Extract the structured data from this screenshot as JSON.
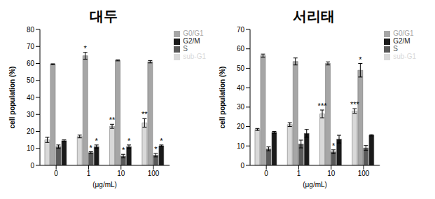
{
  "chart_data": [
    {
      "type": "bar",
      "title": "대두",
      "x_label": "(μg/mL)",
      "y_label": "cell population (%)",
      "categories": [
        "0",
        "1",
        "10",
        "100"
      ],
      "ylim": [
        0,
        80
      ],
      "yticks": [
        0,
        10,
        20,
        30,
        40,
        50,
        60,
        70,
        80
      ],
      "legend": "upper right",
      "series": [
        {
          "name": "sub-G1",
          "color": "#d9d9d9",
          "values": [
            15,
            17,
            23,
            25
          ],
          "errors": [
            1.5,
            0.8,
            1.2,
            2.5
          ],
          "significance": [
            null,
            null,
            "**",
            "**"
          ]
        },
        {
          "name": "G0/G1",
          "color": "#a6a6a6",
          "values": [
            59.5,
            64.5,
            61.8,
            61
          ],
          "errors": [
            0.3,
            2,
            0.3,
            0.7
          ],
          "significance": [
            null,
            "*",
            null,
            null
          ]
        },
        {
          "name": "S",
          "color": "#595959",
          "values": [
            11,
            7.5,
            5.5,
            6
          ],
          "errors": [
            1,
            0.5,
            1,
            1
          ],
          "significance": [
            null,
            "*",
            "*",
            "*"
          ]
        },
        {
          "name": "G2/M",
          "color": "#1a1a1a",
          "values": [
            14.5,
            11,
            11,
            11.5
          ],
          "errors": [
            0.5,
            1,
            1,
            0.5
          ],
          "significance": [
            null,
            "*",
            "*",
            "*"
          ]
        }
      ]
    },
    {
      "type": "bar",
      "title": "서리태",
      "x_label": "(μg/mL)",
      "y_label": "cell population (%)",
      "categories": [
        "0",
        "1",
        "10",
        "100"
      ],
      "ylim": [
        0,
        70
      ],
      "yticks": [
        0,
        10,
        20,
        30,
        40,
        50,
        60,
        70
      ],
      "legend": "upper right",
      "series": [
        {
          "name": "sub-G1",
          "color": "#d9d9d9",
          "values": [
            18.5,
            21,
            26.5,
            28
          ],
          "errors": [
            0.5,
            1,
            2,
            1.2
          ],
          "significance": [
            null,
            null,
            "***",
            "***"
          ]
        },
        {
          "name": "G0/G1",
          "color": "#a6a6a6",
          "values": [
            56.5,
            53.5,
            52.5,
            49
          ],
          "errors": [
            0.8,
            1.8,
            0.8,
            3.5
          ],
          "significance": [
            null,
            null,
            null,
            "*"
          ]
        },
        {
          "name": "S",
          "color": "#595959",
          "values": [
            8.5,
            11,
            7,
            9
          ],
          "errors": [
            1,
            2,
            1,
            1.2
          ],
          "significance": [
            null,
            null,
            "*",
            null
          ]
        },
        {
          "name": "G2/M",
          "color": "#1a1a1a",
          "values": [
            17,
            16.5,
            13.5,
            15.5
          ],
          "errors": [
            0.5,
            2,
            2,
            0.3
          ],
          "significance": [
            null,
            null,
            null,
            null
          ]
        }
      ]
    }
  ]
}
